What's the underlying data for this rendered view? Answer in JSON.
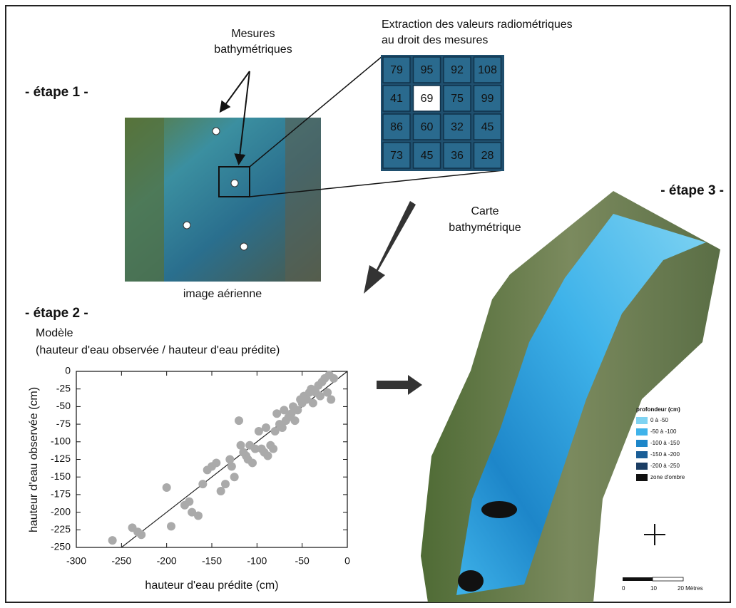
{
  "steps": [
    "- étape 1 -",
    "- étape 2 -",
    "- étape 3 -"
  ],
  "measures_label": [
    "Mesures",
    "bathymétriques"
  ],
  "extraction_label": [
    "Extraction des valeurs radiométriques",
    "au droit des mesures"
  ],
  "aerial_label": "image aérienne",
  "map_label": [
    "Carte",
    "bathymétrique"
  ],
  "radiometric_grid": [
    [
      79,
      95,
      92,
      108
    ],
    [
      41,
      69,
      75,
      99
    ],
    [
      86,
      60,
      32,
      45
    ],
    [
      73,
      45,
      36,
      28
    ]
  ],
  "map_legend": {
    "title": "profondeur (cm)",
    "items": [
      {
        "label": "0 à -50",
        "color": "#7fd3f2"
      },
      {
        "label": "-50 à -100",
        "color": "#3fb3ea"
      },
      {
        "label": "-100 à -150",
        "color": "#1d86c9"
      },
      {
        "label": "-150 à -200",
        "color": "#1a5e97"
      },
      {
        "label": "-200 à -250",
        "color": "#1b3d63"
      },
      {
        "label": "zone d'ombre",
        "color": "#111111"
      }
    ]
  },
  "scale_bar": [
    "0",
    "10",
    "20 Mètres"
  ],
  "chart_data": {
    "type": "scatter",
    "title": "Modèle",
    "subtitle": "(hauteur d'eau observée / hauteur d'eau prédite)",
    "x_label": "hauteur d'eau prédite (cm)",
    "y_label": "hauteur d'eau observée (cm)",
    "color": "#aaaaaa",
    "xlim": [
      -300,
      0
    ],
    "ylim": [
      -250,
      0
    ],
    "xticks": [
      -300,
      -250,
      -200,
      -150,
      -100,
      -50,
      0
    ],
    "yticks": [
      0,
      -25,
      -50,
      -75,
      -100,
      -125,
      -150,
      -175,
      -200,
      -225,
      -250
    ],
    "x": [
      -260,
      -238,
      -232,
      -228,
      -200,
      -195,
      -180,
      -175,
      -172,
      -165,
      -160,
      -155,
      -150,
      -145,
      -140,
      -135,
      -130,
      -128,
      -125,
      -120,
      -118,
      -115,
      -112,
      -110,
      -108,
      -105,
      -102,
      -98,
      -95,
      -92,
      -90,
      -88,
      -85,
      -82,
      -80,
      -78,
      -75,
      -72,
      -70,
      -68,
      -65,
      -62,
      -60,
      -58,
      -55,
      -52,
      -50,
      -48,
      -45,
      -42,
      -40,
      -38,
      -35,
      -32,
      -30,
      -28,
      -25,
      -22,
      -20,
      -18,
      -15
    ],
    "y": [
      -240,
      -222,
      -228,
      -232,
      -165,
      -220,
      -190,
      -185,
      -200,
      -205,
      -160,
      -140,
      -135,
      -130,
      -170,
      -160,
      -125,
      -135,
      -150,
      -70,
      -105,
      -115,
      -120,
      -125,
      -105,
      -130,
      -110,
      -85,
      -110,
      -115,
      -80,
      -120,
      -105,
      -110,
      -85,
      -60,
      -75,
      -80,
      -55,
      -70,
      -65,
      -60,
      -50,
      -70,
      -55,
      -40,
      -45,
      -35,
      -40,
      -30,
      -25,
      -45,
      -30,
      -20,
      -35,
      -15,
      -10,
      -30,
      -5,
      -40,
      -10
    ]
  }
}
